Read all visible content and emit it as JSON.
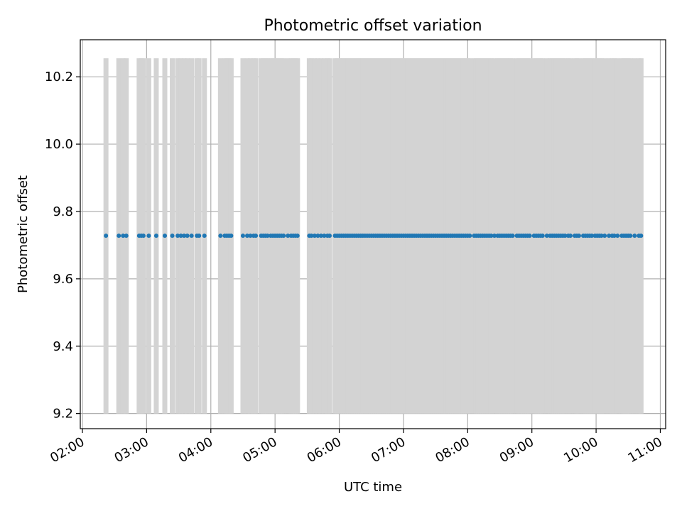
{
  "chart_data": {
    "type": "scatter",
    "title": "Photometric offset variation",
    "xlabel": "UTC time",
    "ylabel": "Photometric offset",
    "x_tick_labels": [
      "02:00",
      "03:00",
      "04:00",
      "05:00",
      "06:00",
      "07:00",
      "08:00",
      "09:00",
      "10:00",
      "11:00"
    ],
    "y_ticks": [
      9.2,
      9.4,
      9.6,
      9.8,
      10.0,
      10.2
    ],
    "y_tick_labels": [
      "9.2",
      "9.4",
      "9.6",
      "9.8",
      "10.0",
      "10.2"
    ],
    "xlim": [
      "01:58",
      "11:05"
    ],
    "ylim": [
      9.155,
      10.31
    ],
    "grid": true,
    "colors": {
      "points": "#1f77b4",
      "errorbars": "#d3d3d3",
      "grid": "#b0b0b0"
    },
    "series": [
      {
        "y_value": 9.728,
        "error_range": [
          9.2,
          10.255
        ],
        "x": [
          "02:22",
          "02:34",
          "02:38",
          "02:41",
          "02:53",
          "02:55",
          "02:57",
          "03:02",
          "03:09",
          "03:17",
          "03:24",
          "03:29",
          "03:32",
          "03:35",
          "03:38",
          "03:42",
          "03:47",
          "03:49",
          "03:54",
          "04:09",
          "04:13",
          "04:15",
          "04:17",
          "04:19",
          "04:30",
          "04:34",
          "04:37",
          "04:40",
          "04:42",
          "04:47",
          "04:49",
          "04:51",
          "04:53",
          "04:56",
          "04:58",
          "05:00",
          "05:02",
          "05:04",
          "05:06",
          "05:08",
          "05:12",
          "05:15",
          "05:17",
          "05:19",
          "05:21",
          "05:32",
          "05:34",
          "05:37",
          "05:40",
          "05:43",
          "05:46",
          "05:49",
          "05:51",
          "05:56",
          "05:58",
          "06:00",
          "06:02",
          "06:04",
          "06:06",
          "06:08",
          "06:10",
          "06:12",
          "06:14",
          "06:16",
          "06:18",
          "06:20",
          "06:22",
          "06:24",
          "06:26",
          "06:28",
          "06:30",
          "06:32",
          "06:34",
          "06:36",
          "06:38",
          "06:40",
          "06:42",
          "06:44",
          "06:46",
          "06:48",
          "06:50",
          "06:52",
          "06:54",
          "06:56",
          "06:58",
          "07:00",
          "07:02",
          "07:04",
          "07:06",
          "07:08",
          "07:10",
          "07:12",
          "07:14",
          "07:16",
          "07:18",
          "07:20",
          "07:22",
          "07:24",
          "07:26",
          "07:28",
          "07:30",
          "07:32",
          "07:34",
          "07:36",
          "07:38",
          "07:40",
          "07:42",
          "07:44",
          "07:46",
          "07:48",
          "07:50",
          "07:52",
          "07:54",
          "07:56",
          "07:58",
          "08:00",
          "08:02",
          "08:06",
          "08:08",
          "08:10",
          "08:12",
          "08:14",
          "08:16",
          "08:18",
          "08:20",
          "08:22",
          "08:25",
          "08:28",
          "08:30",
          "08:32",
          "08:34",
          "08:36",
          "08:38",
          "08:40",
          "08:42",
          "08:46",
          "08:48",
          "08:50",
          "08:52",
          "08:54",
          "08:56",
          "08:58",
          "09:02",
          "09:04",
          "09:06",
          "09:08",
          "09:10",
          "09:14",
          "09:17",
          "09:19",
          "09:21",
          "09:23",
          "09:25",
          "09:27",
          "09:29",
          "09:31",
          "09:34",
          "09:36",
          "09:40",
          "09:42",
          "09:44",
          "09:48",
          "09:50",
          "09:52",
          "09:54",
          "09:56",
          "09:59",
          "10:01",
          "10:03",
          "10:05",
          "10:08",
          "10:12",
          "10:15",
          "10:17",
          "10:20",
          "10:24",
          "10:26",
          "10:28",
          "10:30",
          "10:32",
          "10:36",
          "10:40",
          "10:42"
        ]
      }
    ]
  }
}
